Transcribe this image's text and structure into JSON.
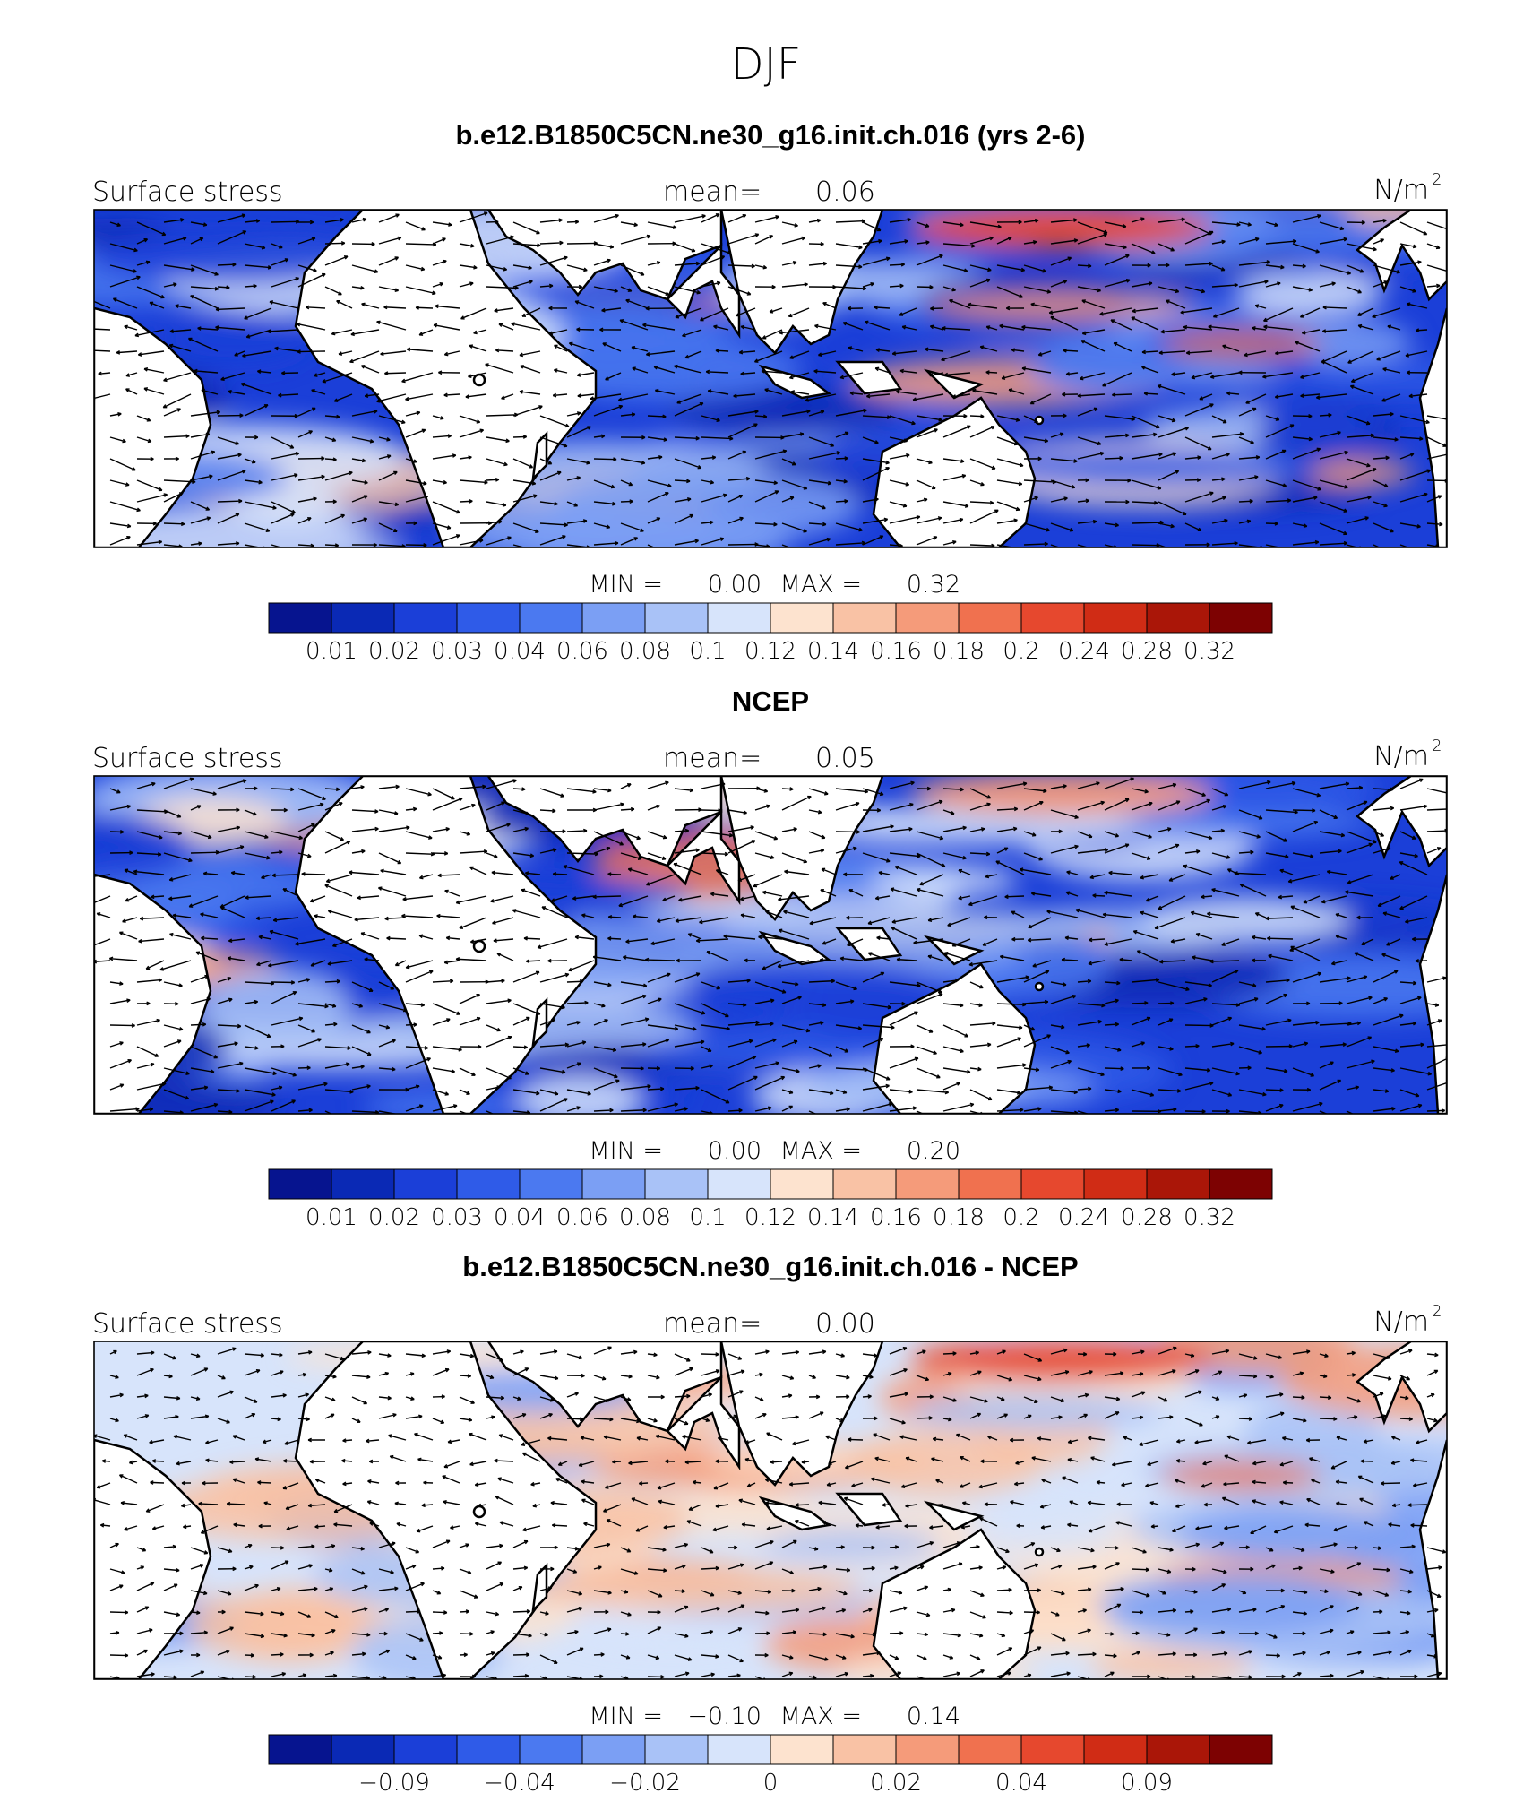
{
  "main_title": "DJF",
  "colors": {
    "ocean_fallback": "#2f5be8",
    "land": "#ffffff",
    "coast": "#000000",
    "arrow": "#000000"
  },
  "panels": [
    {
      "title": "b.e12.B1850C5CN.ne30_g16.init.ch.016 (yrs 2-6)",
      "left_label": "Surface stress",
      "mean_label": "mean=",
      "mean_value": "0.06",
      "units": "N/m",
      "units_exp": "2",
      "minmax": {
        "min_label": "MIN =",
        "min": "0.00",
        "max_label": "MAX =",
        "max": "0.32"
      },
      "colorbar": {
        "colors": [
          "#06148f",
          "#0a29b5",
          "#1b3fd8",
          "#2f5be8",
          "#4b79f0",
          "#7b9ff4",
          "#a9c2f7",
          "#d7e4fb",
          "#fde3cf",
          "#f9c2a5",
          "#f59b7a",
          "#f0714f",
          "#e6482e",
          "#d02c15",
          "#aa1608",
          "#7d0202"
        ],
        "labels": [
          "0.01",
          "0.02",
          "0.03",
          "0.04",
          "0.06",
          "0.08",
          "0.1",
          "0.12",
          "0.14",
          "0.16",
          "0.18",
          "0.2",
          "0.24",
          "0.28",
          "0.32"
        ]
      }
    },
    {
      "title": "NCEP",
      "left_label": "Surface stress",
      "mean_label": "mean=",
      "mean_value": "0.05",
      "units": "N/m",
      "units_exp": "2",
      "minmax": {
        "min_label": "MIN =",
        "min": "0.00",
        "max_label": "MAX =",
        "max": "0.20"
      },
      "colorbar": {
        "colors": [
          "#06148f",
          "#0a29b5",
          "#1b3fd8",
          "#2f5be8",
          "#4b79f0",
          "#7b9ff4",
          "#a9c2f7",
          "#d7e4fb",
          "#fde3cf",
          "#f9c2a5",
          "#f59b7a",
          "#f0714f",
          "#e6482e",
          "#d02c15",
          "#aa1608",
          "#7d0202"
        ],
        "labels": [
          "0.01",
          "0.02",
          "0.03",
          "0.04",
          "0.06",
          "0.08",
          "0.1",
          "0.12",
          "0.14",
          "0.16",
          "0.18",
          "0.2",
          "0.24",
          "0.28",
          "0.32"
        ]
      }
    },
    {
      "title": "b.e12.B1850C5CN.ne30_g16.init.ch.016 - NCEP",
      "left_label": "Surface stress",
      "mean_label": "mean=",
      "mean_value": "0.00",
      "units": "N/m",
      "units_exp": "2",
      "minmax": {
        "min_label": "MIN =",
        "min": "−0.10",
        "max_label": "MAX =",
        "max": "0.14"
      },
      "colorbar": {
        "colors": [
          "#06148f",
          "#0a29b5",
          "#1b3fd8",
          "#2f5be8",
          "#4b79f0",
          "#7b9ff4",
          "#a9c2f7",
          "#d7e4fb",
          "#fde3cf",
          "#f9c2a5",
          "#f59b7a",
          "#f0714f",
          "#e6482e",
          "#d02c15",
          "#aa1608",
          "#7d0202"
        ],
        "labels": [
          "",
          "−0.09",
          "",
          "−0.04",
          "",
          "−0.02",
          "",
          "0",
          "",
          "0.02",
          "",
          "0.04",
          "",
          "0.09",
          ""
        ]
      }
    }
  ]
}
